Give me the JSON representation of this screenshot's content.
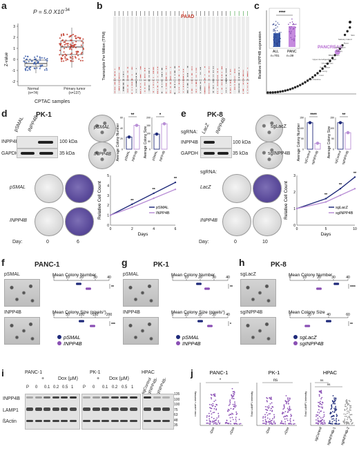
{
  "panel_labels": [
    "a",
    "b",
    "c",
    "d",
    "e",
    "f",
    "g",
    "h",
    "i",
    "j"
  ],
  "panel_a": {
    "pvalue": "P = 5.0 X10",
    "pvalue_exp": "-34",
    "ylabel": "Z-value",
    "xlabel": "CPTAC samples",
    "groups": [
      {
        "name": "Normal",
        "n": "(n=74)"
      },
      {
        "name": "Primary tumor",
        "n": "(n=137)"
      }
    ],
    "yticks": [
      "3",
      "2",
      "1",
      "0",
      "-1",
      "-2"
    ]
  },
  "panel_b": {
    "ylabel": "Transcripts Per Million (TPM)",
    "paad_label": "PAAD"
  },
  "panel_c": {
    "ylabel": "Relative INPP4B expression",
    "highlight": "PANCREAS",
    "inset_groups": [
      {
        "name": "ALL",
        "n": "n=701"
      },
      {
        "name": "PANC",
        "n": "n=39"
      }
    ],
    "stars": "****",
    "tissue_labels": [
      "Skin",
      "Salivary Gland",
      "Bone",
      "Esophagus",
      "Kidney",
      "Biliary Tract",
      "Upper Aerodigestive Tract",
      "Urinary Tract",
      "Soft Tissue",
      "Lung",
      "Liver",
      "Large Intestine"
    ]
  },
  "panel_d": {
    "cell_line": "PK-1",
    "lanes": [
      "pSMAL",
      "INPP4B"
    ],
    "blot_rows": [
      "INPP4B",
      "GAPDH"
    ],
    "kda": [
      "100 kDa",
      "35 kDa"
    ],
    "plate_labels": [
      "pSMAL",
      "INPP4B"
    ],
    "bar1_ylabel": "Average Colony Number",
    "bar1_stars": "**",
    "bar1_yticks": [
      "0",
      "20",
      "40",
      "60"
    ],
    "bar2_ylabel": "Average Colony Size",
    "bar2_stars": "*",
    "bar2_yticks": [
      "0",
      "50",
      "100",
      "150",
      "200"
    ],
    "bar_categories": [
      "pSMAL",
      "INPP4B"
    ],
    "row_labels": [
      "pSMAL",
      "INPP4B"
    ],
    "day_label": "Day:",
    "days": [
      "0",
      "6"
    ],
    "line_ylabel": "Relative Cell Count",
    "line_xlabel": "Days",
    "line_yticks": [
      "0",
      "1",
      "2",
      "3",
      "4",
      "5"
    ],
    "line_xticks": [
      "0",
      "2",
      "4",
      "6"
    ],
    "line_legend": [
      "pSMAL",
      "INPP4B"
    ],
    "line_stars": [
      "**",
      "**",
      "**"
    ]
  },
  "panel_e": {
    "cell_line": "PK-8",
    "sgrna": "sgRNA:",
    "lanes": [
      "LacZ",
      "INPP4B"
    ],
    "blot_rows": [
      "INPP4B",
      "GAPDH"
    ],
    "kda": [
      "100 kDa",
      "35 kDa"
    ],
    "plate_labels": [
      "sgLacZ",
      "sgINPP4B"
    ],
    "bar1_ylabel": "Average Colony Number",
    "bar1_stars": "****",
    "bar1_yticks": [
      "0",
      "50",
      "100",
      "150"
    ],
    "bar2_ylabel": "Average Colony Size",
    "bar2_stars": "**",
    "bar2_yticks": [
      "0",
      "50",
      "100",
      "150"
    ],
    "bar_categories": [
      "sgControl",
      "sgINPP4B"
    ],
    "sg_label": "sgRNA:",
    "row_labels": [
      "LacZ",
      "INPP4B"
    ],
    "day_label": "Day:",
    "days": [
      "0",
      "10"
    ],
    "line_ylabel": "Relative Cell Count",
    "line_xlabel": "Days",
    "line_yticks": [
      "0",
      "1",
      "2",
      "3"
    ],
    "line_xticks": [
      "0",
      "5",
      "10"
    ],
    "line_legend": [
      "sgLacZ",
      "sgINPP4B"
    ],
    "line_stars": [
      "**",
      "**",
      "**"
    ]
  },
  "panel_f": {
    "cell_line": "PANC-1",
    "image_labels": [
      "pSMAL",
      "INPP4B"
    ],
    "metric1": "Mean Colony Number",
    "metric1_ticks": [
      "0",
      "10",
      "20",
      "30",
      "40"
    ],
    "metric2": "Mean Colony Size (pixels",
    "metric2_sup": "2",
    "metric2_close": ")",
    "metric2_ticks": [
      "0",
      "50",
      "100",
      "150",
      "200"
    ],
    "stars1": "**",
    "stars2": "***",
    "legend": [
      "pSMAL",
      "INPP4B"
    ]
  },
  "panel_g": {
    "cell_line": "PK-1",
    "image_labels": [
      "pSMAL",
      "INPP4B"
    ],
    "metric1": "Mean Colony Number",
    "metric1_ticks": [
      "0",
      "10",
      "20",
      "30",
      "40"
    ],
    "metric2": "Mean Colony Size (pixels",
    "metric2_sup": "2",
    "metric2_close": ")",
    "metric2_ticks": [
      "0",
      "10",
      "20",
      "30",
      "40"
    ],
    "stars1": "**",
    "stars2": "*",
    "legend": [
      "pSMAL",
      "INPP4B"
    ]
  },
  "panel_h": {
    "cell_line": "PK-8",
    "image_labels": [
      "sgLacZ",
      "sgINPP4B"
    ],
    "metric1": "Mean Colony Number",
    "metric1_ticks": [
      "0",
      "10",
      "20",
      "30",
      "40"
    ],
    "metric2": "Mean Colony Size",
    "metric2_ticks": [
      "0",
      "20",
      "40",
      "60"
    ],
    "stars1": "****",
    "stars2": "**",
    "legend": [
      "sgLacZ",
      "sgINPP4B"
    ]
  },
  "panel_i": {
    "groups": [
      "PANC-1",
      "PK-1",
      "HPAC"
    ],
    "dox_label": "Dox (μM)",
    "plus": "+",
    "panc_lanes": [
      "P",
      "0",
      "0.1",
      "0.2",
      "0.5",
      "1"
    ],
    "hpac_lanes": [
      "sgControl",
      "sgINPP4B-1",
      "sgINPP4B-2"
    ],
    "rows": [
      "INPP4B",
      "LAMP1",
      "ßActin"
    ],
    "kda": [
      "135",
      "100",
      "100",
      "75",
      "63",
      "48",
      "35"
    ]
  },
  "panel_j": {
    "groups": [
      "PANC-1",
      "PK-1",
      "HPAC"
    ],
    "ylabel": "Total LAMP1 Intensity",
    "panc_x": [
      "-Dox",
      "+Dox"
    ],
    "pk1_x": [
      "-Dox",
      "+Dox"
    ],
    "hpac_x": [
      "sgControl",
      "sgINPP4B-1",
      "sgINPP4B-2"
    ],
    "panc_sig": "*",
    "pk1_sig": "ns",
    "hpac_sig": [
      "ns",
      "ns"
    ]
  },
  "colors": {
    "blue": "#1f2a7a",
    "purple": "#8a4fb4",
    "lightpurple": "#b98fd6",
    "red_tumor": "#c0392b",
    "normal_blue": "#3a5ba8",
    "grid": "#d0d0d0"
  }
}
